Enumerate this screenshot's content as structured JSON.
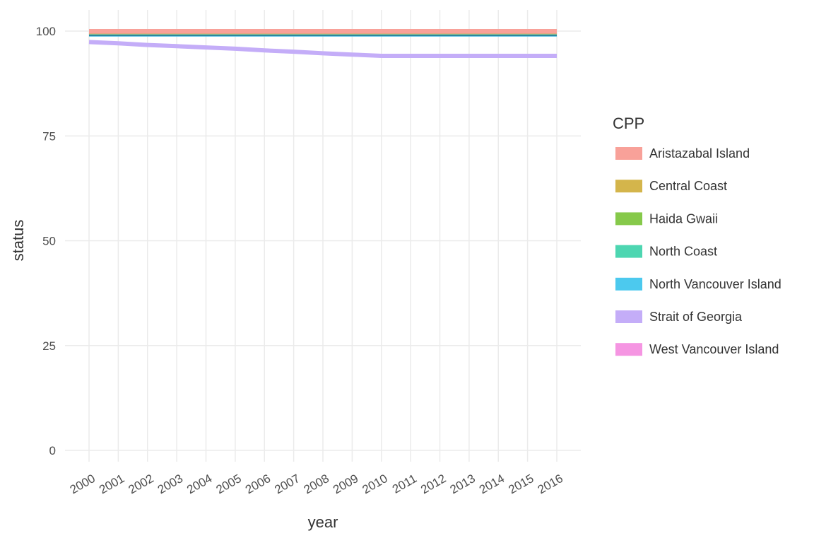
{
  "chart_data": {
    "type": "line",
    "title": "",
    "xlabel": "year",
    "ylabel": "status",
    "x": [
      2000,
      2001,
      2002,
      2003,
      2004,
      2005,
      2006,
      2007,
      2008,
      2009,
      2010,
      2011,
      2012,
      2013,
      2014,
      2015,
      2016
    ],
    "x_tick_labels": [
      "2000",
      "2001",
      "2002",
      "2003",
      "2004",
      "2005",
      "2006",
      "2007",
      "2008",
      "2009",
      "2010",
      "2011",
      "2012",
      "2013",
      "2014",
      "2015",
      "2016"
    ],
    "y_ticks": [
      0,
      25,
      50,
      75,
      100
    ],
    "y_tick_labels": [
      "0",
      "25",
      "50",
      "75",
      "100"
    ],
    "ylim": [
      -1,
      105
    ],
    "grid": true,
    "legend_title": "CPP",
    "legend_position": "right",
    "series": [
      {
        "name": "Aristazabal Island",
        "color": "#F8A199",
        "values": [
          100,
          100,
          100,
          100,
          100,
          100,
          100,
          100,
          100,
          100,
          100,
          100,
          100,
          100,
          100,
          100,
          100
        ]
      },
      {
        "name": "Central Coast",
        "color": "#D4B54B",
        "values": [
          99.9,
          99.9,
          99.9,
          99.9,
          99.9,
          99.9,
          99.9,
          99.9,
          99.9,
          99.9,
          99.9,
          99.9,
          99.9,
          99.9,
          99.9,
          99.9,
          99.9
        ]
      },
      {
        "name": "Haida Gwaii",
        "color": "#86C94A",
        "values": [
          99.7,
          99.7,
          99.7,
          99.7,
          99.7,
          99.7,
          99.7,
          99.7,
          99.7,
          99.7,
          99.7,
          99.7,
          99.7,
          99.7,
          99.7,
          99.7,
          99.7
        ]
      },
      {
        "name": "North Coast",
        "color": "#4DD6B1",
        "values": [
          99.5,
          99.5,
          99.5,
          99.5,
          99.5,
          99.5,
          99.5,
          99.5,
          99.5,
          99.5,
          99.5,
          99.5,
          99.5,
          99.5,
          99.5,
          99.5,
          99.5
        ]
      },
      {
        "name": "North Vancouver Island",
        "color": "#4CC9EE",
        "values": [
          99.2,
          99.2,
          99.2,
          99.2,
          99.2,
          99.2,
          99.2,
          99.2,
          99.2,
          99.2,
          99.2,
          99.2,
          99.2,
          99.2,
          99.2,
          99.2,
          99.2
        ]
      },
      {
        "name": "Strait of Georgia",
        "color": "#C4ADF8",
        "values": [
          97.4,
          97.1,
          96.7,
          96.4,
          96.1,
          95.8,
          95.4,
          95.1,
          94.7,
          94.4,
          94.1,
          94.1,
          94.1,
          94.1,
          94.1,
          94.1,
          94.1
        ]
      },
      {
        "name": "West Vancouver Island",
        "color": "#F595E2",
        "values": [
          99.8,
          99.8,
          99.8,
          99.8,
          99.8,
          99.8,
          99.8,
          99.8,
          99.8,
          99.8,
          99.8,
          99.8,
          99.8,
          99.8,
          99.8,
          99.8,
          99.8
        ]
      }
    ],
    "draw_order": [
      "Strait of Georgia",
      "North Vancouver Island",
      "North Coast",
      "Haida Gwaii",
      "West Vancouver Island",
      "Central Coast",
      "Aristazabal Island"
    ]
  }
}
